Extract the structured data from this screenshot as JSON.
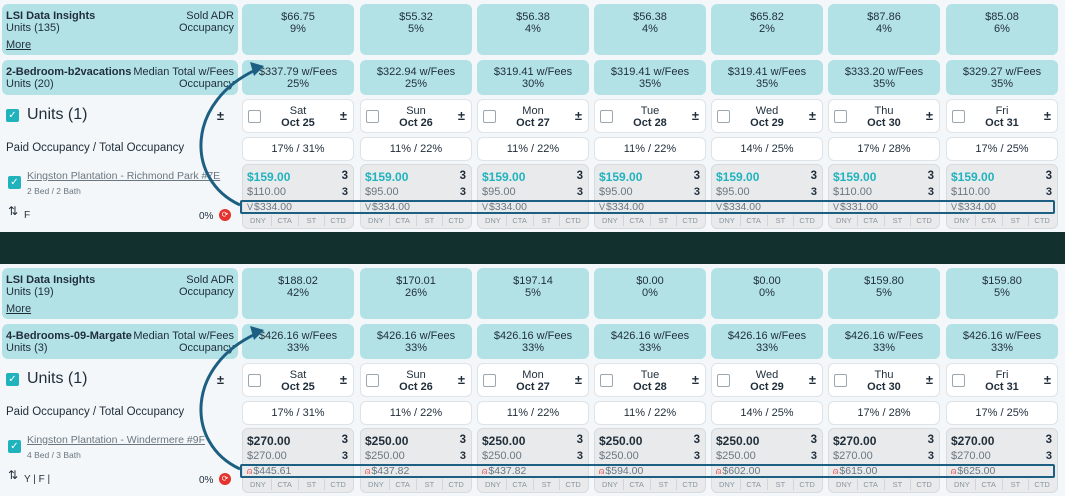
{
  "colors": {
    "teal": "#b2e2e5",
    "accent": "#21b3bd",
    "divider": "#12302d",
    "highlight": "#1d5f82",
    "airbnb": "#e5322d"
  },
  "panels": [
    {
      "lsi_title": "LSI Data Insights",
      "lsi_units": "Units (135)",
      "lsi_sold_adr": "Sold ADR",
      "lsi_occupancy": "Occupancy",
      "more": "More",
      "group_name": "2-Bedroom-b2vacations",
      "group_units": "Units (20)",
      "median_label": "Median Total w/Fees",
      "median_occ": "Occupancy",
      "units_label": "Units (1)",
      "paid_label": "Paid Occupancy / Total Occupancy",
      "property_name": "Kingston Plantation - Richmond Park #7E",
      "property_sub": "2 Bed / 2 Bath",
      "tags": "F",
      "pct": "0%",
      "channel_icon": "vrbo-icon",
      "columns": [
        {
          "adr": "$66.75",
          "adr_occ": "9%",
          "median": "$337.79 w/Fees",
          "median_occ": "25%",
          "day": "Sat",
          "date": "Oct 25",
          "paid": "17% / 31%",
          "price": "$159.00",
          "price_n": "3",
          "min": "$110.00",
          "min_n": "3",
          "total": "$334.00"
        },
        {
          "adr": "$55.32",
          "adr_occ": "5%",
          "median": "$322.94 w/Fees",
          "median_occ": "25%",
          "day": "Sun",
          "date": "Oct 26",
          "paid": "11% / 22%",
          "price": "$159.00",
          "price_n": "3",
          "min": "$95.00",
          "min_n": "3",
          "total": "$334.00"
        },
        {
          "adr": "$56.38",
          "adr_occ": "4%",
          "median": "$319.41 w/Fees",
          "median_occ": "30%",
          "day": "Mon",
          "date": "Oct 27",
          "paid": "11% / 22%",
          "price": "$159.00",
          "price_n": "3",
          "min": "$95.00",
          "min_n": "3",
          "total": "$334.00"
        },
        {
          "adr": "$56.38",
          "adr_occ": "4%",
          "median": "$319.41 w/Fees",
          "median_occ": "35%",
          "day": "Tue",
          "date": "Oct 28",
          "paid": "11% / 22%",
          "price": "$159.00",
          "price_n": "3",
          "min": "$95.00",
          "min_n": "3",
          "total": "$334.00"
        },
        {
          "adr": "$65.82",
          "adr_occ": "2%",
          "median": "$319.41 w/Fees",
          "median_occ": "35%",
          "day": "Wed",
          "date": "Oct 29",
          "paid": "14% / 25%",
          "price": "$159.00",
          "price_n": "3",
          "min": "$95.00",
          "min_n": "3",
          "total": "$334.00"
        },
        {
          "adr": "$87.86",
          "adr_occ": "4%",
          "median": "$333.20 w/Fees",
          "median_occ": "35%",
          "day": "Thu",
          "date": "Oct 30",
          "paid": "17% / 28%",
          "price": "$159.00",
          "price_n": "3",
          "min": "$110.00",
          "min_n": "3",
          "total": "$331.00"
        },
        {
          "adr": "$85.08",
          "adr_occ": "6%",
          "median": "$329.27 w/Fees",
          "median_occ": "35%",
          "day": "Fri",
          "date": "Oct 31",
          "paid": "17% / 25%",
          "price": "$159.00",
          "price_n": "3",
          "min": "$110.00",
          "min_n": "3",
          "total": "$334.00"
        }
      ]
    },
    {
      "lsi_title": "LSI Data Insights",
      "lsi_units": "Units (19)",
      "lsi_sold_adr": "Sold ADR",
      "lsi_occupancy": "Occupancy",
      "more": "More",
      "group_name": "4-Bedrooms-09-Margate",
      "group_units": "Units (3)",
      "median_label": "Median Total w/Fees",
      "median_occ": "Occupancy",
      "units_label": "Units (1)",
      "paid_label": "Paid Occupancy / Total Occupancy",
      "property_name": "Kingston Plantation - Windermere #9F",
      "property_sub": "4 Bed / 3 Bath",
      "tags": "Y | F |",
      "pct": "0%",
      "channel_icon": "airbnb-icon",
      "columns": [
        {
          "adr": "$188.02",
          "adr_occ": "42%",
          "median": "$426.16 w/Fees",
          "median_occ": "33%",
          "day": "Sat",
          "date": "Oct 25",
          "paid": "17% / 31%",
          "price": "$270.00",
          "price_n": "3",
          "min": "$270.00",
          "min_n": "3",
          "total": "$445.61"
        },
        {
          "adr": "$170.01",
          "adr_occ": "26%",
          "median": "$426.16 w/Fees",
          "median_occ": "33%",
          "day": "Sun",
          "date": "Oct 26",
          "paid": "11% / 22%",
          "price": "$250.00",
          "price_n": "3",
          "min": "$250.00",
          "min_n": "3",
          "total": "$437.82"
        },
        {
          "adr": "$197.14",
          "adr_occ": "5%",
          "median": "$426.16 w/Fees",
          "median_occ": "33%",
          "day": "Mon",
          "date": "Oct 27",
          "paid": "11% / 22%",
          "price": "$250.00",
          "price_n": "3",
          "min": "$250.00",
          "min_n": "3",
          "total": "$437.82"
        },
        {
          "adr": "$0.00",
          "adr_occ": "0%",
          "median": "$426.16 w/Fees",
          "median_occ": "33%",
          "day": "Tue",
          "date": "Oct 28",
          "paid": "11% / 22%",
          "price": "$250.00",
          "price_n": "3",
          "min": "$250.00",
          "min_n": "3",
          "total": "$594.00"
        },
        {
          "adr": "$0.00",
          "adr_occ": "0%",
          "median": "$426.16 w/Fees",
          "median_occ": "33%",
          "day": "Wed",
          "date": "Oct 29",
          "paid": "14% / 25%",
          "price": "$250.00",
          "price_n": "3",
          "min": "$250.00",
          "min_n": "3",
          "total": "$602.00"
        },
        {
          "adr": "$159.80",
          "adr_occ": "5%",
          "median": "$426.16 w/Fees",
          "median_occ": "33%",
          "day": "Thu",
          "date": "Oct 30",
          "paid": "17% / 28%",
          "price": "$270.00",
          "price_n": "3",
          "min": "$270.00",
          "min_n": "3",
          "total": "$615.00"
        },
        {
          "adr": "$159.80",
          "adr_occ": "5%",
          "median": "$426.16 w/Fees",
          "median_occ": "33%",
          "day": "Fri",
          "date": "Oct 31",
          "paid": "17% / 25%",
          "price": "$270.00",
          "price_n": "3",
          "min": "$270.00",
          "min_n": "3",
          "total": "$625.00"
        }
      ],
      "restrictions": [
        "DNY",
        "CTA",
        "ST",
        "CTD"
      ]
    }
  ],
  "restrictions": [
    "DNY",
    "CTA",
    "ST",
    "CTD"
  ]
}
